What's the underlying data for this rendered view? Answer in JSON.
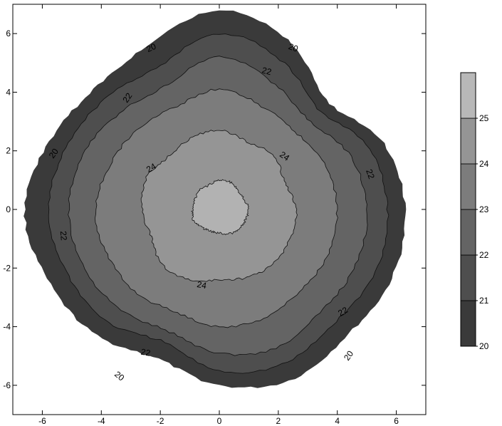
{
  "chart_data": {
    "type": "contour",
    "title": "",
    "xlabel": "",
    "ylabel": "",
    "xlim": [
      -7,
      7
    ],
    "ylim": [
      -7,
      7
    ],
    "x_ticks": [
      -6,
      -4,
      -2,
      0,
      2,
      4,
      6
    ],
    "y_ticks": [
      6,
      4,
      2,
      0,
      -2,
      -4,
      -6
    ],
    "x_tick_labels": [
      "-6",
      "-4",
      "-2",
      "0",
      "2",
      "4",
      "6"
    ],
    "y_tick_labels": [
      "6",
      "4",
      "2",
      "0",
      "-2",
      "-4",
      "-6"
    ],
    "grid": false,
    "levels": [
      {
        "value": 20,
        "color": "#3a3a3a"
      },
      {
        "value": 21,
        "color": "#4e4e4e"
      },
      {
        "value": 22,
        "color": "#646464"
      },
      {
        "value": 23,
        "color": "#7c7c7c"
      },
      {
        "value": 24,
        "color": "#959595"
      },
      {
        "value": 25,
        "color": "#b2b2b2"
      }
    ],
    "regions": [
      {
        "level": 20,
        "radius": [
          6.3,
          6.0,
          5.2,
          6.2,
          6.8,
          6.1,
          5.9,
          6.2,
          6.6,
          6.3,
          6.0,
          5.5,
          6.0,
          6.3,
          6.1,
          6.3
        ]
      },
      {
        "level": 21,
        "radius": [
          5.7,
          5.5,
          4.8,
          5.5,
          6.0,
          5.3,
          5.4,
          5.6,
          5.8,
          5.6,
          5.4,
          4.9,
          5.5,
          5.7,
          5.5,
          5.7
        ]
      },
      {
        "level": 22,
        "radius": [
          5.0,
          4.8,
          4.3,
          4.7,
          5.2,
          4.6,
          4.7,
          5.0,
          5.1,
          5.0,
          4.8,
          4.5,
          4.9,
          5.1,
          4.9,
          5.0
        ]
      },
      {
        "level": 23,
        "radius": [
          4.0,
          3.9,
          3.7,
          3.8,
          4.1,
          3.8,
          3.9,
          4.0,
          4.2,
          4.1,
          4.0,
          3.8,
          4.0,
          4.0,
          3.9,
          4.0
        ]
      },
      {
        "level": 24,
        "radius": [
          2.6,
          2.4,
          2.6,
          2.5,
          2.7,
          2.6,
          2.5,
          2.7,
          2.6,
          2.5,
          2.7,
          2.6,
          2.4,
          2.5,
          2.6,
          2.6
        ]
      },
      {
        "level": 25,
        "radius": [
          1.0,
          0.9,
          0.9,
          1.0,
          1.0,
          0.9,
          0.95,
          0.9,
          0.9,
          0.95,
          0.85,
          0.8,
          0.8,
          0.9,
          0.95,
          0.95
        ]
      }
    ],
    "contour_labels": [
      {
        "text": "20",
        "x": -2.3,
        "y": 5.5,
        "angle": -25
      },
      {
        "text": "20",
        "x": 2.5,
        "y": 5.5,
        "angle": 20
      },
      {
        "text": "20",
        "x": -5.6,
        "y": 1.9,
        "angle": -55
      },
      {
        "text": "20",
        "x": -3.4,
        "y": -5.7,
        "angle": 40
      },
      {
        "text": "20",
        "x": 4.4,
        "y": -5.0,
        "angle": -55
      },
      {
        "text": "22",
        "x": 1.6,
        "y": 4.7,
        "angle": 15
      },
      {
        "text": "22",
        "x": -3.1,
        "y": 3.8,
        "angle": -55
      },
      {
        "text": "22",
        "x": 5.1,
        "y": 1.2,
        "angle": 70
      },
      {
        "text": "22",
        "x": -5.3,
        "y": -0.9,
        "angle": 85
      },
      {
        "text": "22",
        "x": 4.2,
        "y": -3.5,
        "angle": -30
      },
      {
        "text": "22",
        "x": -2.5,
        "y": -4.9,
        "angle": 10
      },
      {
        "text": "24",
        "x": -2.3,
        "y": 1.4,
        "angle": -30
      },
      {
        "text": "24",
        "x": 2.2,
        "y": 1.8,
        "angle": 35
      },
      {
        "text": "24",
        "x": -0.6,
        "y": -2.6,
        "angle": 10
      }
    ],
    "colorbar": {
      "ticks": [
        20,
        21,
        22,
        23,
        24,
        25
      ],
      "tick_labels": [
        "20",
        "21",
        "22",
        "23",
        "24",
        "25"
      ],
      "top_color": "#bdbdbd",
      "bins": [
        {
          "from": 20,
          "to": 21,
          "color": "#3a3a3a"
        },
        {
          "from": 21,
          "to": 22,
          "color": "#4e4e4e"
        },
        {
          "from": 22,
          "to": 23,
          "color": "#646464"
        },
        {
          "from": 23,
          "to": 24,
          "color": "#7c7c7c"
        },
        {
          "from": 24,
          "to": 25,
          "color": "#959595"
        },
        {
          "from": 25,
          "to": 26,
          "color": "#b8b8b8"
        }
      ]
    }
  }
}
